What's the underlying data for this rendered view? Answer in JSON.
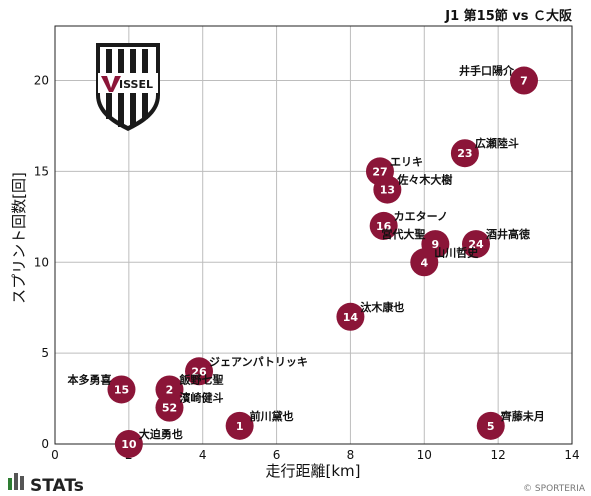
{
  "header": {
    "match_title": "J1 第15節 vs Ｃ大阪"
  },
  "logo": {
    "wordmark": "VISSEL"
  },
  "footer": {
    "brand": "STATs",
    "credit": "© SPORTERIA"
  },
  "colors": {
    "marker": "#8b1538",
    "marker_text": "#ffffff",
    "grid": "#bdbdbd"
  },
  "chart_data": {
    "type": "scatter",
    "xlabel": "走行距離[km]",
    "ylabel": "スプリント回数[回]",
    "xlim": [
      0,
      14
    ],
    "ylim": [
      0,
      23
    ],
    "xticks": [
      0,
      2,
      4,
      6,
      8,
      10,
      12,
      14
    ],
    "yticks": [
      0,
      5,
      10,
      15,
      20
    ],
    "grid": true,
    "points": [
      {
        "number": "7",
        "name": "井手口陽介",
        "x": 12.7,
        "y": 20,
        "label_side": "left"
      },
      {
        "number": "23",
        "name": "広瀬陸斗",
        "x": 11.1,
        "y": 16,
        "label_side": "right"
      },
      {
        "number": "27",
        "name": "エリキ",
        "x": 8.8,
        "y": 15,
        "label_side": "right"
      },
      {
        "number": "13",
        "name": "佐々木大樹",
        "x": 9.0,
        "y": 14,
        "label_side": "right"
      },
      {
        "number": "16",
        "name": "カエターノ",
        "x": 8.9,
        "y": 12,
        "label_side": "right"
      },
      {
        "number": "9",
        "name": "宮代大聖",
        "x": 10.3,
        "y": 11,
        "label_side": "left"
      },
      {
        "number": "24",
        "name": "酒井高徳",
        "x": 11.4,
        "y": 11,
        "label_side": "right"
      },
      {
        "number": "4",
        "name": "山川哲史",
        "x": 10.0,
        "y": 10,
        "label_side": "right"
      },
      {
        "number": "14",
        "name": "汰木康也",
        "x": 8.0,
        "y": 7,
        "label_side": "right"
      },
      {
        "number": "26",
        "name": "ジェアンパトリッキ",
        "x": 3.9,
        "y": 4,
        "label_side": "right"
      },
      {
        "number": "15",
        "name": "本多勇喜",
        "x": 1.8,
        "y": 3,
        "label_side": "left"
      },
      {
        "number": "2",
        "name": "飯野七聖",
        "x": 3.1,
        "y": 3,
        "label_side": "right"
      },
      {
        "number": "52",
        "name": "濱崎健斗",
        "x": 3.1,
        "y": 2,
        "label_side": "right"
      },
      {
        "number": "1",
        "name": "前川黛也",
        "x": 5.0,
        "y": 1,
        "label_side": "right"
      },
      {
        "number": "5",
        "name": "齊藤未月",
        "x": 11.8,
        "y": 1,
        "label_side": "right"
      },
      {
        "number": "10",
        "name": "大迫勇也",
        "x": 2.0,
        "y": 0,
        "label_side": "right"
      }
    ]
  }
}
